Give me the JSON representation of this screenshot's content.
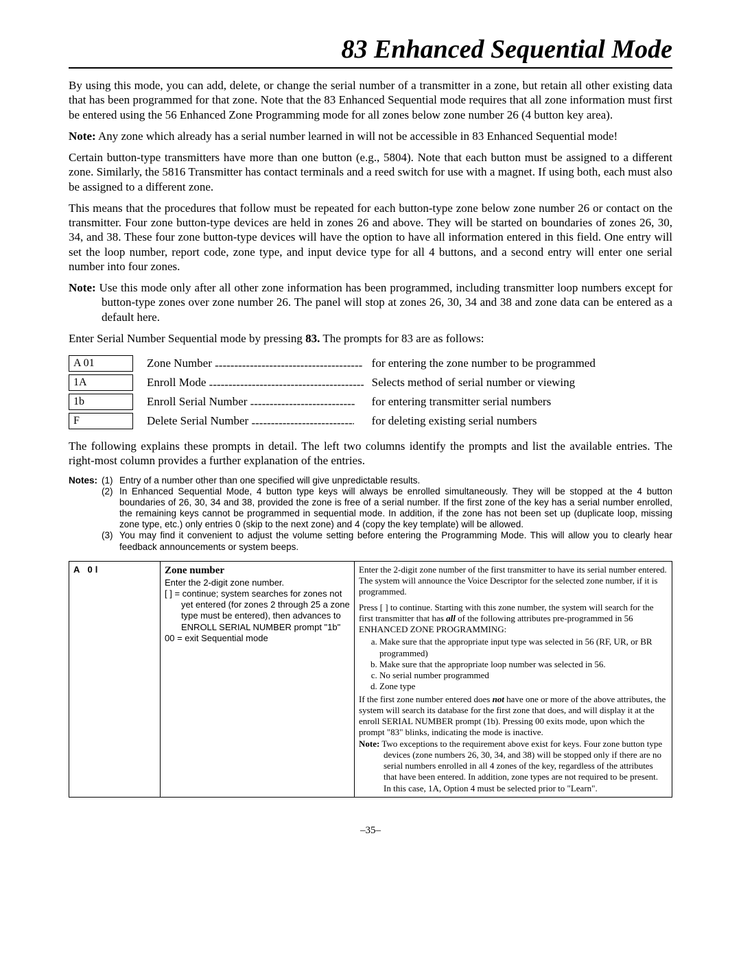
{
  "title": "83 Enhanced Sequential Mode",
  "para1": "By using this mode, you can add, delete, or change the serial number of a transmitter in a zone, but retain all other existing data that has been programmed for that zone. Note that the   83 Enhanced Sequential mode requires that all zone information must first be entered using the   56 Enhanced Zone Programming mode for all zones below zone number 26 (4 button key area).",
  "note1_lead": "Note:",
  "note1": " Any zone which already has a serial number learned in will not be accessible in  83 Enhanced Sequential mode!",
  "para2": "Certain button-type transmitters have more than one button (e.g., 5804). Note that each button must be assigned to a different zone. Similarly, the 5816 Transmitter has contact terminals and a reed switch for use with a magnet. If using both, each must also be assigned to a different zone.",
  "para3": "This means that the procedures that follow must be repeated for each button-type zone below zone number 26 or contact on the transmitter. Four zone button-type devices are held in zones 26 and above. They will be started on boundaries of zones 26, 30, 34, and 38. These four zone button-type devices will have the option to have all information entered in this field. One entry will set the loop number, report code, zone type, and input device type for all 4 buttons, and a second entry will enter one serial number into four zones.",
  "note2_lead": "Note:",
  "note2": " Use this mode only after all other zone information has been programmed, including transmitter loop numbers except for button-type zones over zone number 26. The panel will stop at zones 26, 30, 34 and 38 and zone data can be entered as a default here.",
  "enter_line_a": "Enter Serial Number Sequential mode by pressing   ",
  "enter_line_b": "83.",
  "enter_line_c": " The prompts for   83 are as follows:",
  "prompts": [
    {
      "box": "A  01",
      "label": "Zone Number",
      "dash_w": 215,
      "desc": "for entering the zone number to be programmed"
    },
    {
      "box": "1A",
      "label": "Enroll Mode",
      "dash_w": 225,
      "desc": "Selects method of serial number or viewing"
    },
    {
      "box": "1b",
      "label": "Enroll Serial Number",
      "dash_w": 152,
      "desc": "for entering transmitter serial numbers"
    },
    {
      "box": "F",
      "label": "Delete Serial Number",
      "dash_w": 150,
      "desc": "for deleting existing serial numbers"
    }
  ],
  "para4": "The following explains these prompts in detail. The left two columns identify the prompts and list the available entries. The right-most column provides a further explanation of the entries.",
  "notes_lead": "Notes:",
  "noteslist": [
    {
      "n": "(1)",
      "t": "Entry of a number other than one specified will give unpredictable results."
    },
    {
      "n": "(2)",
      "t": "In Enhanced Sequential Mode, 4 button type keys will always be enrolled simultaneously. They will be stopped at the 4 button boundaries of 26, 30, 34 and 38, provided the zone is free of a serial number. If the first zone of the key has a serial number enrolled, the remaining keys cannot be programmed in sequential mode. In addition, if the zone has not been set up (duplicate loop, missing zone type, etc.) only entries 0 (skip to the next zone) and 4 (copy the key template) will be allowed."
    },
    {
      "n": "(3)",
      "t": "You may find it convenient to adjust the volume setting before entering the Programming Mode. This will allow you to clearly hear feedback announcements or system beeps."
    }
  ],
  "tbl": {
    "display": "A    0l",
    "mid_head": "Zone number",
    "mid_line1": "Enter the 2-digit zone number.",
    "mid_line2": "[   ]  = continue; system searches for zones not yet entered (for zones 2 through 25 a zone type must be entered), then advances to ENROLL SERIAL NUMBER prompt \"1b\"",
    "mid_line3": "00  =  exit Sequential mode",
    "r_p1": "Enter the  2-digit zone number of the first transmitter to have its serial number entered. The system will announce the Voice Descriptor for the selected zone number, if it is programmed.",
    "r_p2a": "Press [   ] to continue. Starting with this zone number, the system will search for the first transmitter that  has ",
    "r_p2b": "all",
    "r_p2c": " of the following attributes pre-programmed in   56 ENHANCED ZONE PROGRAMMING:",
    "r_li": [
      "Make sure that the appropriate input type was selected in    56 (RF, UR, or BR programmed)",
      "Make sure that the appropriate loop number was selected in   56.",
      "No serial number programmed",
      "Zone type"
    ],
    "r_p3a": "If the first zone number entered does ",
    "r_p3b": "not",
    "r_p3c": " have one or more of the above attributes, the system will search its database for the first zone that does, and will display it at the enroll SERIAL NUMBER prompt (1b). Pressing 00 exits mode, upon which the prompt \"83\" blinks, indicating the mode is inactive.",
    "r_note_lead": "Note:",
    "r_note": "  Two exceptions to the requirement above exist for keys. Four zone button type devices (zone numbers 26, 30, 34, and 38) will be stopped only if there are no serial numbers enrolled in all 4 zones of the key, regardless of the attributes that have been entered. In addition, zone types are not required to be present. In this case, 1A, Option 4 must be selected prior to \"Learn\"."
  },
  "pagenum": "–35–"
}
